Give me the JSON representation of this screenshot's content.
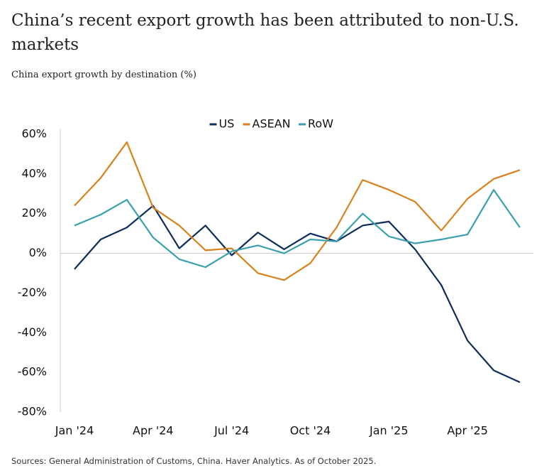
{
  "chart_data": {
    "type": "line",
    "title": "China’s recent export growth has been attributed to non-U.S. markets",
    "subtitle": "China export growth by destination (%)",
    "source": "Sources: General Administration of Customs, China. Haver Analytics. As of October 2025.",
    "categories": [
      "Jan '24",
      null,
      null,
      "Apr '24",
      null,
      null,
      "Jul '24",
      null,
      null,
      "Oct '24",
      null,
      null,
      "Jan '25",
      null,
      null,
      "Apr '25",
      null,
      null
    ],
    "series": [
      {
        "name": "US",
        "color": "#0b2d5c",
        "values": [
          -8,
          7,
          13,
          24,
          2.5,
          14,
          -1,
          10.5,
          2,
          10,
          6,
          14,
          16,
          2,
          -16,
          -44,
          -59,
          -65
        ]
      },
      {
        "name": "ASEAN",
        "color": "#d9811c",
        "values": [
          24,
          38,
          56,
          23,
          14,
          1.5,
          2.5,
          -10,
          -13.5,
          -5,
          13,
          37,
          32,
          26,
          11.5,
          27.5,
          37.5,
          42
        ]
      },
      {
        "name": "RoW",
        "color": "#3a9fae",
        "values": [
          14,
          19.5,
          27,
          8,
          -3,
          -7,
          1,
          4,
          0,
          7,
          6,
          20,
          8.5,
          5,
          7,
          9.5,
          32,
          13
        ]
      }
    ],
    "ylim": [
      -80,
      60
    ],
    "yticks": [
      {
        "value": -80,
        "label": "-80%"
      },
      {
        "value": -60,
        "label": "-60%"
      },
      {
        "value": -40,
        "label": "-40%"
      },
      {
        "value": -20,
        "label": "-20%"
      },
      {
        "value": 0,
        "label": "0%"
      },
      {
        "value": 20,
        "label": "20%"
      },
      {
        "value": 40,
        "label": "40%"
      },
      {
        "value": 60,
        "label": "60%"
      }
    ],
    "grid": false,
    "legend": "top"
  }
}
